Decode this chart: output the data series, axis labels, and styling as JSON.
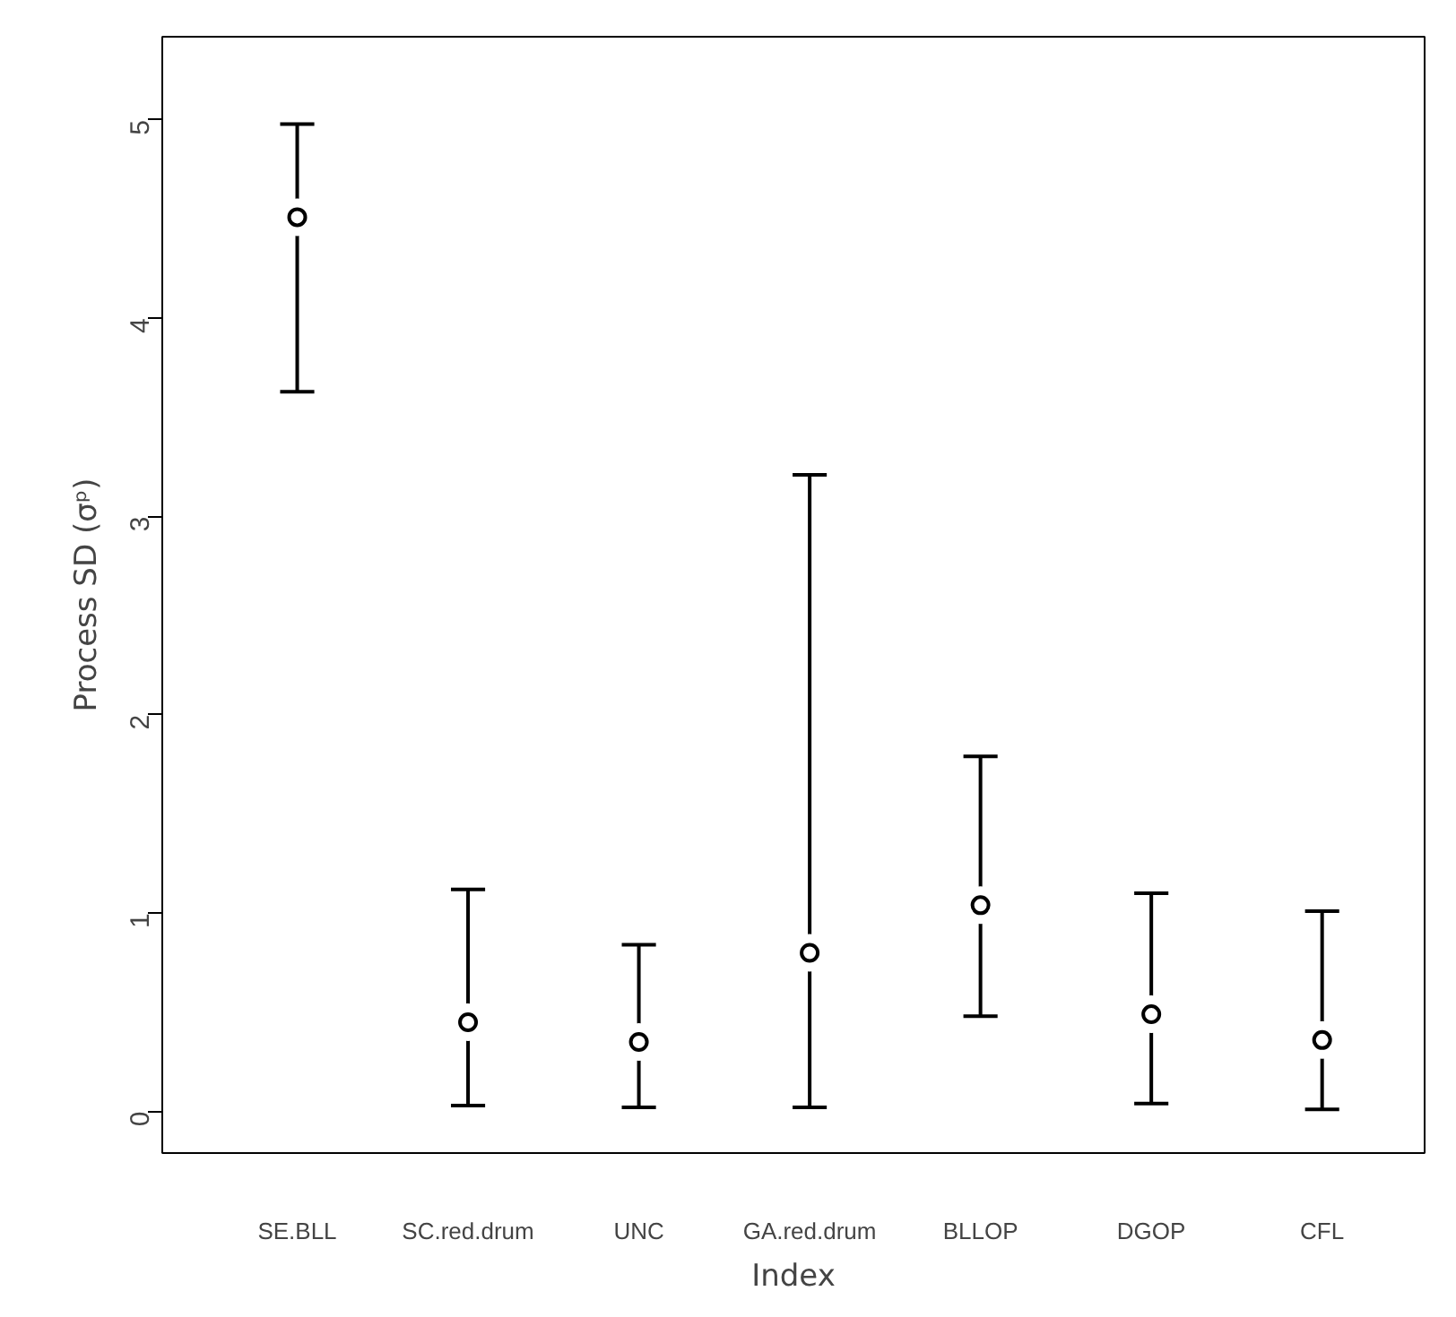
{
  "chart_data": {
    "type": "scatter",
    "xlabel": "Index",
    "ylabel": "Process SD (σᵖ)",
    "categories": [
      "SE.BLL",
      "SC.red.drum",
      "UNC",
      "GA.red.drum",
      "BLLOP",
      "DGOP",
      "CFL"
    ],
    "values": [
      4.51,
      0.45,
      0.35,
      0.8,
      1.04,
      0.49,
      0.36
    ],
    "errors": [
      [
        3.63,
        4.98
      ],
      [
        0.03,
        1.12
      ],
      [
        0.02,
        0.84
      ],
      [
        0.02,
        3.21
      ],
      [
        0.48,
        1.79
      ],
      [
        0.04,
        1.1
      ],
      [
        0.01,
        1.01
      ]
    ],
    "color": "#000000",
    "marker": "circle",
    "ylim": [
      -0.21,
      5.42
    ],
    "yticks": [
      0,
      1,
      2,
      3,
      4,
      5
    ],
    "grid": false
  }
}
